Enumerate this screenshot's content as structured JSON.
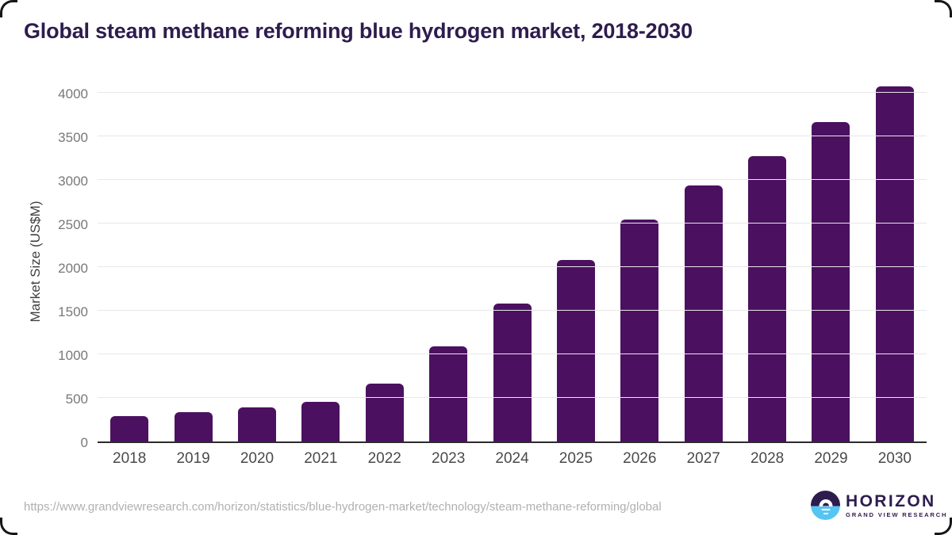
{
  "chart_data": {
    "type": "bar",
    "title": "Global steam methane reforming blue hydrogen market, 2018-2030",
    "categories": [
      "2018",
      "2019",
      "2020",
      "2021",
      "2022",
      "2023",
      "2024",
      "2025",
      "2026",
      "2027",
      "2028",
      "2029",
      "2030"
    ],
    "values": [
      295,
      340,
      390,
      455,
      665,
      1090,
      1580,
      2080,
      2545,
      2935,
      3275,
      3660,
      4070
    ],
    "xlabel": "",
    "ylabel": "Market Size (US$M)",
    "ylim": [
      0,
      4000
    ],
    "y_ticks": [
      0,
      500,
      1000,
      1500,
      2000,
      2500,
      3000,
      3500,
      4000
    ],
    "grid": true,
    "legend": "none",
    "bar_color": "#4b1160"
  },
  "colors": {
    "title": "#2e1c4e",
    "bar": "#4b1160",
    "gridline": "#e7e7e7",
    "axis_line": "#2b2b2b",
    "logo_purple": "#2e1c4e",
    "logo_blue": "#56c5f2"
  },
  "footer": {
    "source_url": "https://www.grandviewresearch.com/horizon/statistics/blue-hydrogen-market/technology/steam-methane-reforming/global",
    "logo": {
      "icon": "horizon-sunrise-icon",
      "name": "HORIZON",
      "subtitle": "GRAND VIEW RESEARCH"
    }
  }
}
